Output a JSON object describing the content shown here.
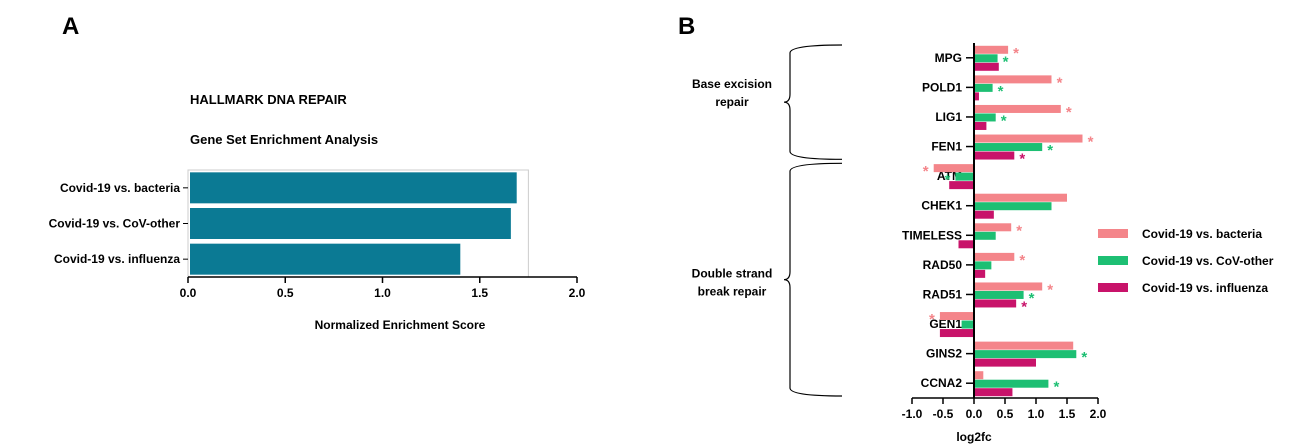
{
  "panels": {
    "a_label": "A",
    "b_label": "B"
  },
  "chart_data": [
    {
      "type": "bar",
      "orientation": "horizontal",
      "title": "HALLMARK DNA REPAIR",
      "subtitle": "Gene Set Enrichment Analysis",
      "categories": [
        "Covid-19 vs. bacteria",
        "Covid-19 vs. CoV-other",
        "Covid-19 vs. influenza"
      ],
      "values": [
        1.69,
        1.66,
        1.4
      ],
      "xlabel": "Normalized Enrichment Score",
      "xlim": [
        0,
        1.75
      ],
      "xticks": [
        0.0,
        0.5,
        1.0,
        1.5,
        2.0
      ],
      "xtick_labels": [
        "0.0",
        "0.5",
        "1.0",
        "1.5",
        "2.0"
      ],
      "bar_color": "#0b7a94",
      "frame_color": "#cccccc"
    },
    {
      "type": "bar",
      "orientation": "horizontal",
      "categories": [
        "MPG",
        "POLD1",
        "LIG1",
        "FEN1",
        "ATM",
        "CHEK1",
        "TIMELESS",
        "RAD50",
        "RAD51",
        "GEN1",
        "GINS2",
        "CCNA2"
      ],
      "series": [
        {
          "name": "Covid-19 vs. bacteria",
          "color": "#f4858a",
          "values": [
            0.55,
            1.25,
            1.4,
            1.75,
            -0.65,
            1.5,
            0.6,
            0.65,
            1.1,
            -0.55,
            1.6,
            0.15
          ],
          "significant": [
            true,
            true,
            true,
            true,
            true,
            false,
            true,
            true,
            true,
            true,
            false,
            false
          ]
        },
        {
          "name": "Covid-19 vs. CoV-other",
          "color": "#1dbf73",
          "values": [
            0.38,
            0.3,
            0.35,
            1.1,
            -0.3,
            1.25,
            0.35,
            0.28,
            0.8,
            -0.2,
            1.65,
            1.2
          ],
          "significant": [
            true,
            true,
            true,
            true,
            true,
            false,
            false,
            false,
            true,
            false,
            true,
            true
          ]
        },
        {
          "name": "Covid-19 vs. influenza",
          "color": "#c8136a",
          "values": [
            0.4,
            0.08,
            0.2,
            0.65,
            -0.4,
            0.32,
            -0.25,
            0.18,
            0.68,
            -0.55,
            1.0,
            0.62
          ],
          "significant": [
            false,
            false,
            false,
            true,
            false,
            false,
            false,
            false,
            true,
            false,
            false,
            false
          ]
        }
      ],
      "significance_marker": "*",
      "xlabel": "log2fc",
      "xlim": [
        -1.0,
        2.0
      ],
      "xticks": [
        -1.0,
        -0.5,
        0.0,
        0.5,
        1.0,
        1.5,
        2.0
      ],
      "xtick_labels": [
        "-1.0",
        "-0.5",
        "0.0",
        "0.5",
        "1.0",
        "1.5",
        "2.0"
      ],
      "legend_placement": "right",
      "groups": [
        {
          "label_lines": [
            "Base excision",
            "repair"
          ],
          "first": 0,
          "last": 3
        },
        {
          "label_lines": [
            "Double strand",
            "break repair"
          ],
          "first": 4,
          "last": 11
        }
      ]
    }
  ]
}
